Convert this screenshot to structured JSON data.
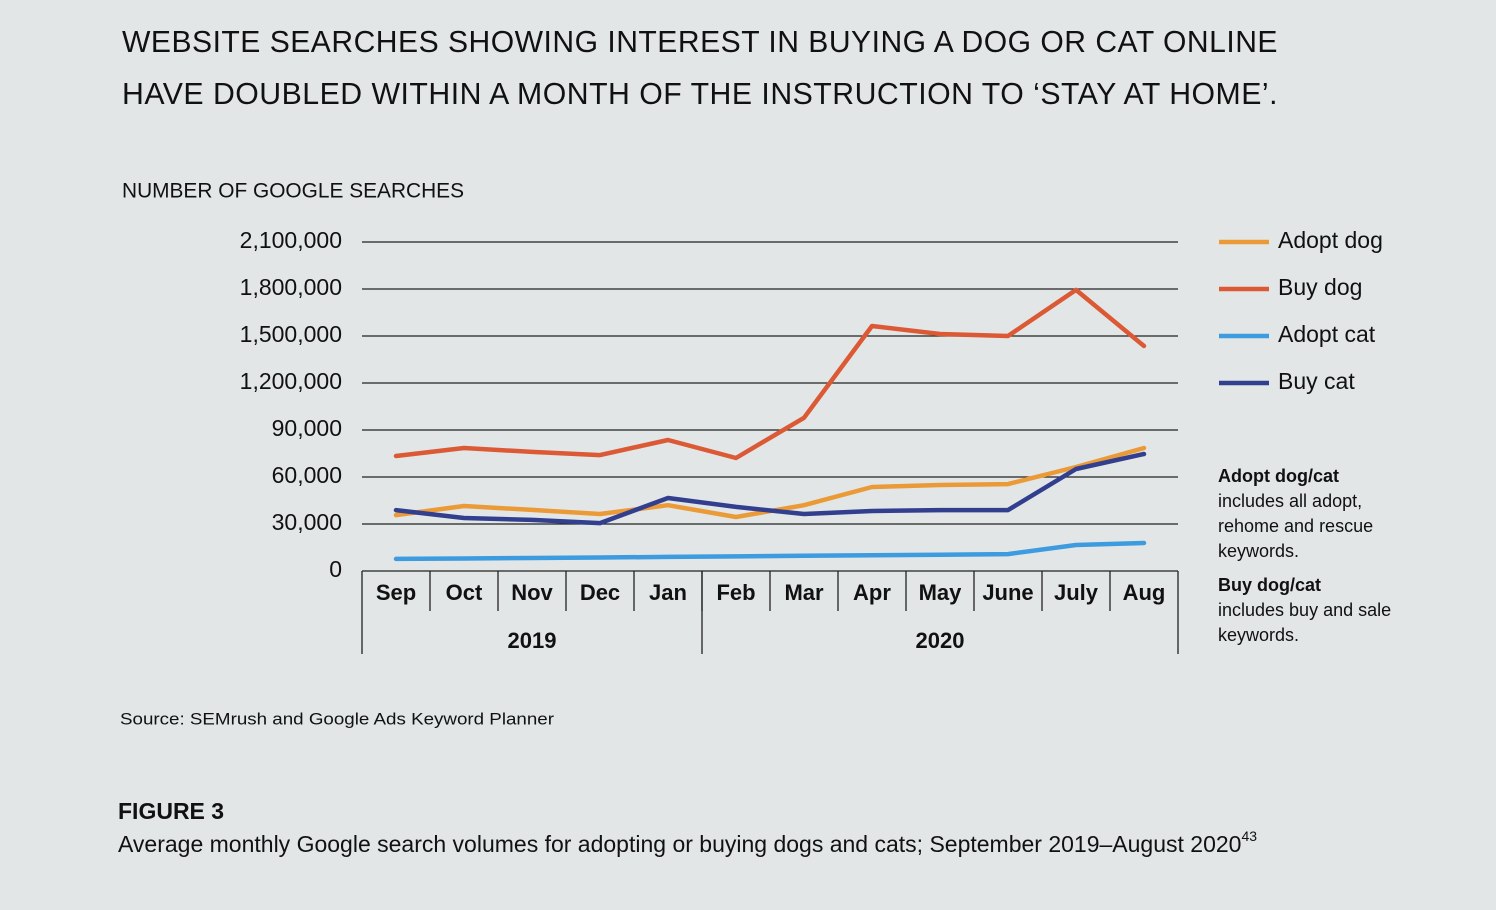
{
  "chart_data": {
    "type": "line",
    "title_lines": [
      "WEBSITE SEARCHES SHOWING INTEREST IN BUYING A DOG OR CAT ONLINE",
      "HAVE DOUBLED WITHIN A MONTH OF THE INSTRUCTION TO ‘STAY AT HOME’."
    ],
    "y_label": "NUMBER OF GOOGLE SEARCHES",
    "categories": [
      "Sep",
      "Oct",
      "Nov",
      "Dec",
      "Jan",
      "Feb",
      "Mar",
      "Apr",
      "May",
      "June",
      "July",
      "Aug"
    ],
    "groups": [
      {
        "label": "2019",
        "count": 5
      },
      {
        "label": "2020",
        "count": 7
      }
    ],
    "ylim": [
      0,
      2100000
    ],
    "yticks": [
      0,
      {
        "value": 30000,
        "label": "30,000"
      },
      {
        "value": 60000,
        "label": "60,000"
      },
      {
        "value": 90000,
        "label": "90,000"
      },
      {
        "value": 1200000,
        "label": "1,200,000"
      },
      {
        "value": 1500000,
        "label": "1,500,000"
      },
      {
        "value": 1800000,
        "label": "1,800,000"
      },
      {
        "value": 2100000,
        "label": "2,100,000"
      }
    ],
    "grid": true,
    "series": [
      {
        "name": "Adopt dog",
        "color": "#eb9a38",
        "values": [
          35700,
          41500,
          39000,
          36400,
          42000,
          34500,
          42000,
          53600,
          54900,
          55500,
          66400,
          78500
        ]
      },
      {
        "name": "Buy dog",
        "color": "#db5a35",
        "values": [
          73400,
          78500,
          76000,
          74000,
          83600,
          72100,
          378600,
          1563800,
          1512800,
          1500000,
          1794000,
          1436000
        ]
      },
      {
        "name": "Adopt cat",
        "color": "#3d9be0",
        "values": [
          7700,
          8000,
          8300,
          8600,
          9000,
          9300,
          9700,
          10000,
          10400,
          10800,
          16600,
          17900
        ]
      },
      {
        "name": "Buy cat",
        "color": "#313f8e",
        "values": [
          38900,
          33800,
          32600,
          30600,
          46600,
          40900,
          36400,
          38300,
          38900,
          38900,
          65100,
          74700
        ]
      }
    ],
    "legend": "right",
    "notes": [
      {
        "title": "Adopt dog/cat",
        "lines": [
          "includes all adopt,",
          "rehome and rescue",
          "keywords."
        ]
      },
      {
        "title": "Buy dog/cat",
        "lines": [
          "includes buy and sale",
          "keywords."
        ]
      }
    ],
    "source": "Source: SEMrush and Google Ads Keyword Planner",
    "figure_label": "FIGURE 3",
    "caption": "Average monthly Google search volumes for adopting or buying dogs and cats; September 2019–August 2020",
    "caption_ref": "43"
  }
}
